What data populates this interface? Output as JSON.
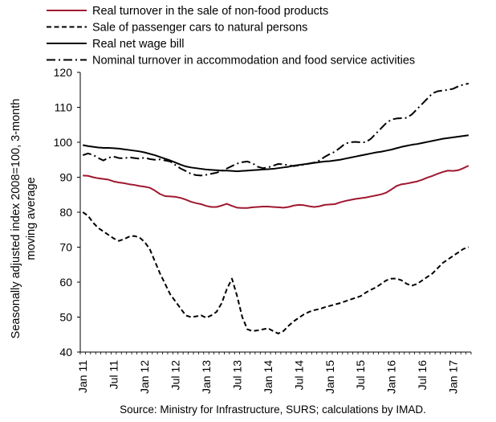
{
  "chart_data": {
    "type": "line",
    "ylabel_lines": [
      "Seasonally adjusted index 2008=100, 3-month",
      "moving average"
    ],
    "ylim": [
      40,
      120
    ],
    "yticks": [
      40,
      50,
      60,
      70,
      80,
      90,
      100,
      110,
      120
    ],
    "xticks": [
      "Jan 11",
      "Jul 11",
      "Jan 12",
      "Jul 12",
      "Jan 13",
      "Jul 13",
      "Jan 14",
      "Jul 14",
      "Jan 15",
      "Jul 15",
      "Jan 16",
      "Jul 16",
      "Jan 17"
    ],
    "x_start": "Jan 11",
    "x_end": "Jun 17",
    "grid": false,
    "legend_position": "top",
    "source": "Source: Ministry for Infrastructure, SURS; calculations by IMAD.",
    "series": [
      {
        "name": "Real turnover in the sale of non-food products",
        "color": "#a01830",
        "dash": "solid",
        "values": [
          90.5,
          90.4,
          90.0,
          89.7,
          89.5,
          89.3,
          88.8,
          88.5,
          88.3,
          88.0,
          87.8,
          87.5,
          87.3,
          87.0,
          86.2,
          85.2,
          84.6,
          84.5,
          84.4,
          84.1,
          83.6,
          83.0,
          82.6,
          82.3,
          81.8,
          81.5,
          81.5,
          81.9,
          82.4,
          81.8,
          81.3,
          81.2,
          81.2,
          81.4,
          81.5,
          81.6,
          81.6,
          81.5,
          81.4,
          81.3,
          81.5,
          81.9,
          82.1,
          82.0,
          81.7,
          81.5,
          81.7,
          82.1,
          82.2,
          82.3,
          82.8,
          83.2,
          83.5,
          83.8,
          84.0,
          84.2,
          84.5,
          84.8,
          85.1,
          85.6,
          86.5,
          87.5,
          88.0,
          88.2,
          88.5,
          88.8,
          89.3,
          89.9,
          90.4,
          91.0,
          91.5,
          91.9,
          91.8,
          92.0,
          92.6,
          93.3
        ]
      },
      {
        "name": "Sale of passenger cars to natural persons",
        "color": "#000000",
        "dash": "dashed",
        "values": [
          80.0,
          79.0,
          77.0,
          75.5,
          74.5,
          73.5,
          72.5,
          71.8,
          72.3,
          73.0,
          73.2,
          72.8,
          71.5,
          69.5,
          66.0,
          62.5,
          59.5,
          56.5,
          54.5,
          52.5,
          50.5,
          50.0,
          50.2,
          50.5,
          49.8,
          50.5,
          51.5,
          54.0,
          58.0,
          61.0,
          56.0,
          50.0,
          46.5,
          46.0,
          46.2,
          46.5,
          46.8,
          46.0,
          45.3,
          46.0,
          47.5,
          48.8,
          49.8,
          50.8,
          51.5,
          52.0,
          52.3,
          52.8,
          53.2,
          53.6,
          54.0,
          54.5,
          55.0,
          55.5,
          56.0,
          57.0,
          57.8,
          58.5,
          59.5,
          60.5,
          61.0,
          61.0,
          60.5,
          59.5,
          59.0,
          59.5,
          60.5,
          61.5,
          62.5,
          64.0,
          65.5,
          66.5,
          67.5,
          68.5,
          69.5,
          70.0
        ]
      },
      {
        "name": "Real net wage bill",
        "color": "#000000",
        "dash": "solid",
        "values": [
          99.2,
          98.9,
          98.7,
          98.5,
          98.4,
          98.4,
          98.3,
          98.2,
          98.0,
          97.8,
          97.6,
          97.4,
          97.1,
          96.7,
          96.3,
          95.8,
          95.3,
          94.8,
          94.2,
          93.6,
          93.1,
          92.8,
          92.6,
          92.4,
          92.2,
          92.1,
          92.0,
          91.9,
          91.9,
          91.8,
          91.7,
          91.8,
          91.9,
          92.0,
          92.1,
          92.2,
          92.3,
          92.4,
          92.6,
          92.8,
          93.0,
          93.3,
          93.5,
          93.7,
          93.9,
          94.1,
          94.3,
          94.5,
          94.6,
          94.8,
          95.0,
          95.3,
          95.6,
          95.9,
          96.2,
          96.5,
          96.8,
          97.1,
          97.3,
          97.6,
          97.9,
          98.3,
          98.7,
          99.0,
          99.3,
          99.5,
          99.8,
          100.1,
          100.4,
          100.7,
          101.0,
          101.2,
          101.4,
          101.6,
          101.8,
          102.0
        ]
      },
      {
        "name": "Nominal turnover in accommodation and food service activities",
        "color": "#000000",
        "dash": "dashdot",
        "values": [
          96.3,
          96.8,
          96.4,
          95.5,
          94.8,
          95.6,
          95.9,
          95.5,
          95.4,
          95.7,
          95.5,
          95.3,
          95.6,
          95.2,
          95.0,
          95.1,
          94.8,
          94.5,
          93.5,
          92.5,
          91.8,
          91.0,
          90.6,
          90.5,
          90.7,
          91.0,
          91.3,
          91.8,
          92.5,
          93.2,
          93.9,
          94.3,
          94.5,
          94.0,
          93.0,
          92.6,
          92.8,
          93.3,
          93.8,
          93.7,
          93.4,
          93.2,
          93.4,
          93.6,
          93.9,
          94.2,
          94.8,
          95.8,
          96.6,
          97.3,
          98.4,
          99.6,
          100.0,
          100.1,
          100.0,
          100.0,
          101.0,
          102.5,
          104.0,
          105.5,
          106.5,
          106.8,
          106.9,
          107.0,
          108.0,
          109.5,
          111.0,
          112.5,
          114.0,
          114.6,
          114.8,
          115.0,
          115.3,
          116.0,
          116.5,
          116.8
        ]
      }
    ]
  }
}
